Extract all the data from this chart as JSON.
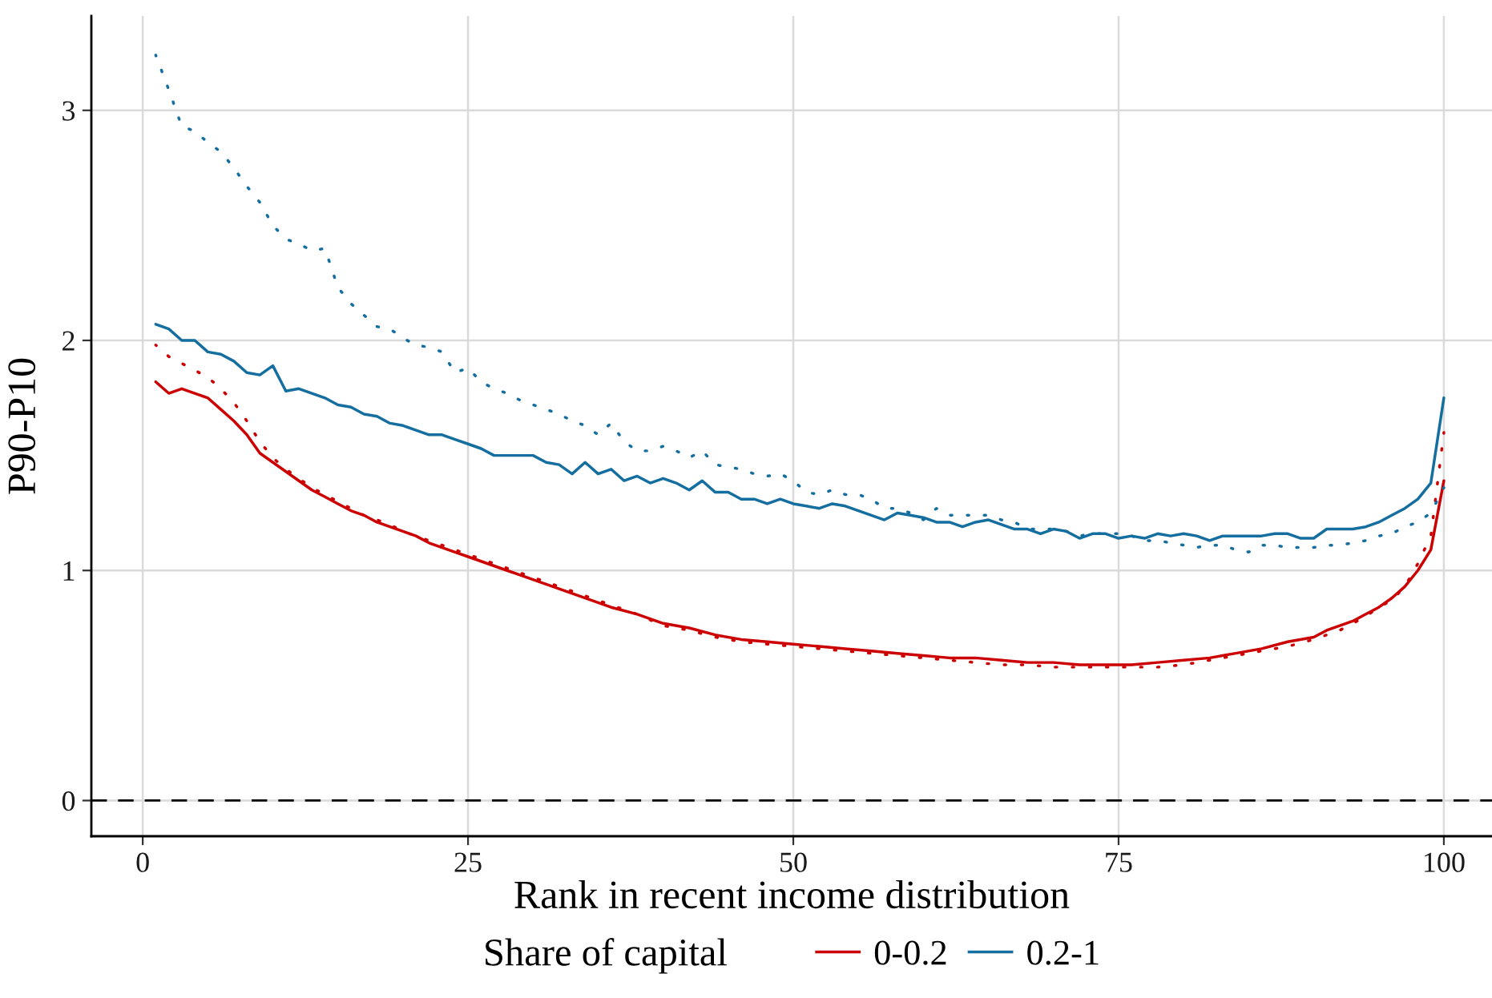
{
  "chart_data": {
    "type": "line",
    "xlabel": "Rank in recent income distribution",
    "ylabel": "P90-P10",
    "legend_title": "Share of capital",
    "xlim": [
      -3.95,
      103.7
    ],
    "ylim": [
      -0.155,
      3.41
    ],
    "xticks": [
      0,
      25,
      50,
      75,
      100
    ],
    "yticks": [
      0,
      1,
      2,
      3
    ],
    "grid": true,
    "legend": "bottom",
    "ref_lines": [
      {
        "axis": "y",
        "value": 0,
        "line_style": "dashed",
        "color": "#000000"
      }
    ],
    "series": [
      {
        "name": "0-0.2",
        "color": "#cc0000",
        "line_style": "solid",
        "x": [
          1,
          2,
          3,
          4,
          5,
          6,
          7,
          8,
          9,
          10,
          11,
          12,
          13,
          14,
          15,
          16,
          17,
          18,
          19,
          20,
          21,
          22,
          23,
          24,
          25,
          26,
          27,
          28,
          29,
          30,
          31,
          32,
          33,
          34,
          35,
          36,
          38,
          40,
          42,
          44,
          46,
          48,
          50,
          52,
          54,
          56,
          58,
          60,
          62,
          64,
          66,
          68,
          70,
          72,
          74,
          76,
          78,
          80,
          82,
          84,
          86,
          88,
          90,
          91,
          92,
          93,
          94,
          95,
          96,
          97,
          98,
          99,
          100
        ],
        "values": [
          1.82,
          1.77,
          1.79,
          1.77,
          1.75,
          1.7,
          1.65,
          1.59,
          1.51,
          1.47,
          1.43,
          1.39,
          1.35,
          1.32,
          1.29,
          1.26,
          1.24,
          1.21,
          1.19,
          1.17,
          1.15,
          1.12,
          1.1,
          1.08,
          1.06,
          1.04,
          1.02,
          1.0,
          0.98,
          0.96,
          0.94,
          0.92,
          0.9,
          0.88,
          0.86,
          0.84,
          0.81,
          0.77,
          0.75,
          0.72,
          0.7,
          0.69,
          0.68,
          0.67,
          0.66,
          0.65,
          0.64,
          0.63,
          0.62,
          0.62,
          0.61,
          0.6,
          0.6,
          0.59,
          0.59,
          0.59,
          0.6,
          0.61,
          0.62,
          0.64,
          0.66,
          0.69,
          0.71,
          0.74,
          0.76,
          0.78,
          0.81,
          0.84,
          0.88,
          0.93,
          1.0,
          1.09,
          1.39
        ]
      },
      {
        "color": "#cc0000",
        "line_style": "dotted",
        "x": [
          1,
          2,
          3,
          4,
          5,
          6,
          7,
          8,
          9,
          10,
          11,
          12,
          13,
          14,
          15,
          16,
          17,
          18,
          19,
          20,
          22,
          24,
          26,
          28,
          30,
          32,
          34,
          36,
          38,
          40,
          42,
          44,
          46,
          48,
          50,
          52,
          54,
          56,
          58,
          60,
          62,
          64,
          66,
          68,
          70,
          72,
          74,
          76,
          78,
          80,
          82,
          84,
          86,
          88,
          90,
          91,
          92,
          93,
          94,
          95,
          96,
          97,
          98,
          99,
          100
        ],
        "values": [
          1.98,
          1.93,
          1.9,
          1.87,
          1.84,
          1.79,
          1.73,
          1.65,
          1.56,
          1.49,
          1.44,
          1.4,
          1.36,
          1.33,
          1.3,
          1.27,
          1.24,
          1.22,
          1.2,
          1.17,
          1.13,
          1.09,
          1.05,
          1.01,
          0.97,
          0.93,
          0.89,
          0.85,
          0.81,
          0.76,
          0.74,
          0.71,
          0.69,
          0.68,
          0.67,
          0.66,
          0.65,
          0.64,
          0.63,
          0.62,
          0.61,
          0.6,
          0.59,
          0.59,
          0.58,
          0.58,
          0.58,
          0.58,
          0.58,
          0.59,
          0.61,
          0.63,
          0.65,
          0.67,
          0.7,
          0.72,
          0.74,
          0.77,
          0.8,
          0.84,
          0.87,
          0.93,
          1.03,
          1.15,
          1.6
        ]
      },
      {
        "name": "0.2-1",
        "color": "#146ea0",
        "line_style": "solid",
        "x": [
          1,
          2,
          3,
          4,
          5,
          6,
          7,
          8,
          9,
          10,
          11,
          12,
          13,
          14,
          15,
          16,
          17,
          18,
          19,
          20,
          21,
          22,
          23,
          24,
          25,
          26,
          27,
          28,
          29,
          30,
          31,
          32,
          33,
          34,
          35,
          36,
          37,
          38,
          39,
          40,
          41,
          42,
          43,
          44,
          45,
          46,
          47,
          48,
          49,
          50,
          51,
          52,
          53,
          54,
          55,
          56,
          57,
          58,
          59,
          60,
          61,
          62,
          63,
          64,
          65,
          66,
          67,
          68,
          69,
          70,
          71,
          72,
          73,
          74,
          75,
          76,
          77,
          78,
          79,
          80,
          81,
          82,
          83,
          84,
          85,
          86,
          87,
          88,
          89,
          90,
          91,
          92,
          93,
          94,
          95,
          96,
          97,
          98,
          99,
          100
        ],
        "values": [
          2.07,
          2.05,
          2.0,
          2.0,
          1.95,
          1.94,
          1.91,
          1.86,
          1.85,
          1.89,
          1.78,
          1.79,
          1.77,
          1.75,
          1.72,
          1.71,
          1.68,
          1.67,
          1.64,
          1.63,
          1.61,
          1.59,
          1.59,
          1.57,
          1.55,
          1.53,
          1.5,
          1.5,
          1.5,
          1.5,
          1.47,
          1.46,
          1.42,
          1.47,
          1.42,
          1.44,
          1.39,
          1.41,
          1.38,
          1.4,
          1.38,
          1.35,
          1.39,
          1.34,
          1.34,
          1.31,
          1.31,
          1.29,
          1.31,
          1.29,
          1.28,
          1.27,
          1.29,
          1.28,
          1.26,
          1.24,
          1.22,
          1.25,
          1.24,
          1.23,
          1.21,
          1.21,
          1.19,
          1.21,
          1.22,
          1.2,
          1.18,
          1.18,
          1.16,
          1.18,
          1.17,
          1.14,
          1.16,
          1.16,
          1.14,
          1.15,
          1.14,
          1.16,
          1.15,
          1.16,
          1.15,
          1.13,
          1.15,
          1.15,
          1.15,
          1.15,
          1.16,
          1.16,
          1.14,
          1.14,
          1.18,
          1.18,
          1.18,
          1.19,
          1.21,
          1.24,
          1.27,
          1.31,
          1.38,
          1.75
        ]
      },
      {
        "color": "#146ea0",
        "line_style": "dotted",
        "x": [
          1,
          2,
          3,
          4,
          5,
          6,
          7,
          8,
          9,
          10,
          11,
          12,
          13,
          14,
          15,
          16,
          17,
          18,
          19,
          20,
          21,
          22,
          23,
          24,
          25,
          26,
          27,
          28,
          29,
          30,
          31,
          32,
          33,
          34,
          35,
          36,
          37,
          38,
          39,
          40,
          41,
          42,
          43,
          44,
          45,
          46,
          47,
          48,
          49,
          50,
          51,
          52,
          53,
          54,
          55,
          56,
          57,
          58,
          59,
          60,
          61,
          62,
          63,
          64,
          65,
          66,
          67,
          68,
          69,
          70,
          71,
          72,
          73,
          74,
          75,
          76,
          77,
          78,
          79,
          80,
          81,
          82,
          83,
          84,
          85,
          86,
          87,
          88,
          89,
          90,
          91,
          92,
          93,
          94,
          95,
          96,
          97,
          98,
          99,
          100
        ],
        "values": [
          3.24,
          3.09,
          2.93,
          2.91,
          2.86,
          2.82,
          2.75,
          2.67,
          2.6,
          2.5,
          2.44,
          2.42,
          2.39,
          2.4,
          2.23,
          2.16,
          2.11,
          2.06,
          2.05,
          2.01,
          1.98,
          1.97,
          1.95,
          1.86,
          1.88,
          1.82,
          1.79,
          1.77,
          1.74,
          1.72,
          1.7,
          1.68,
          1.65,
          1.63,
          1.59,
          1.64,
          1.56,
          1.52,
          1.52,
          1.54,
          1.52,
          1.49,
          1.52,
          1.46,
          1.45,
          1.44,
          1.42,
          1.41,
          1.42,
          1.39,
          1.34,
          1.33,
          1.35,
          1.33,
          1.33,
          1.31,
          1.27,
          1.27,
          1.25,
          1.22,
          1.27,
          1.24,
          1.24,
          1.24,
          1.24,
          1.22,
          1.21,
          1.18,
          1.18,
          1.18,
          1.17,
          1.15,
          1.16,
          1.16,
          1.16,
          1.15,
          1.13,
          1.13,
          1.12,
          1.11,
          1.1,
          1.11,
          1.11,
          1.09,
          1.08,
          1.11,
          1.11,
          1.1,
          1.1,
          1.1,
          1.11,
          1.11,
          1.12,
          1.13,
          1.15,
          1.16,
          1.19,
          1.21,
          1.25,
          1.36
        ]
      }
    ]
  }
}
